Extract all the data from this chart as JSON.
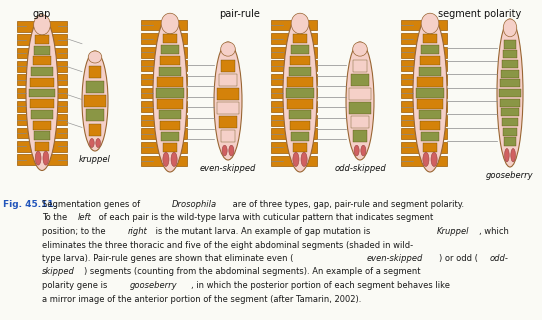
{
  "gap_label": "gap",
  "pair_rule_label": "pair-rule",
  "seg_pol_label": "segment polarity",
  "kruppel_label": "kruppel",
  "even_skipped_label": "even-skipped",
  "odd_skipped_label": "odd-skipped",
  "gooseberry_label": "gooseberry",
  "fig_label": "Fig. 45.11.",
  "bg_color": "#FAFAF5",
  "orange": "#D4820A",
  "orange_bar": "#D4820A",
  "orange_edge": "#9B5A05",
  "pink": "#F0BEB5",
  "pink_body": "#F5D0C8",
  "green": "#8A9645",
  "red_tail": "#D06060",
  "line_color": "#888888",
  "text_color": "#111111",
  "fig_label_color": "#2255BB",
  "caption_color": "#1A1A1A"
}
